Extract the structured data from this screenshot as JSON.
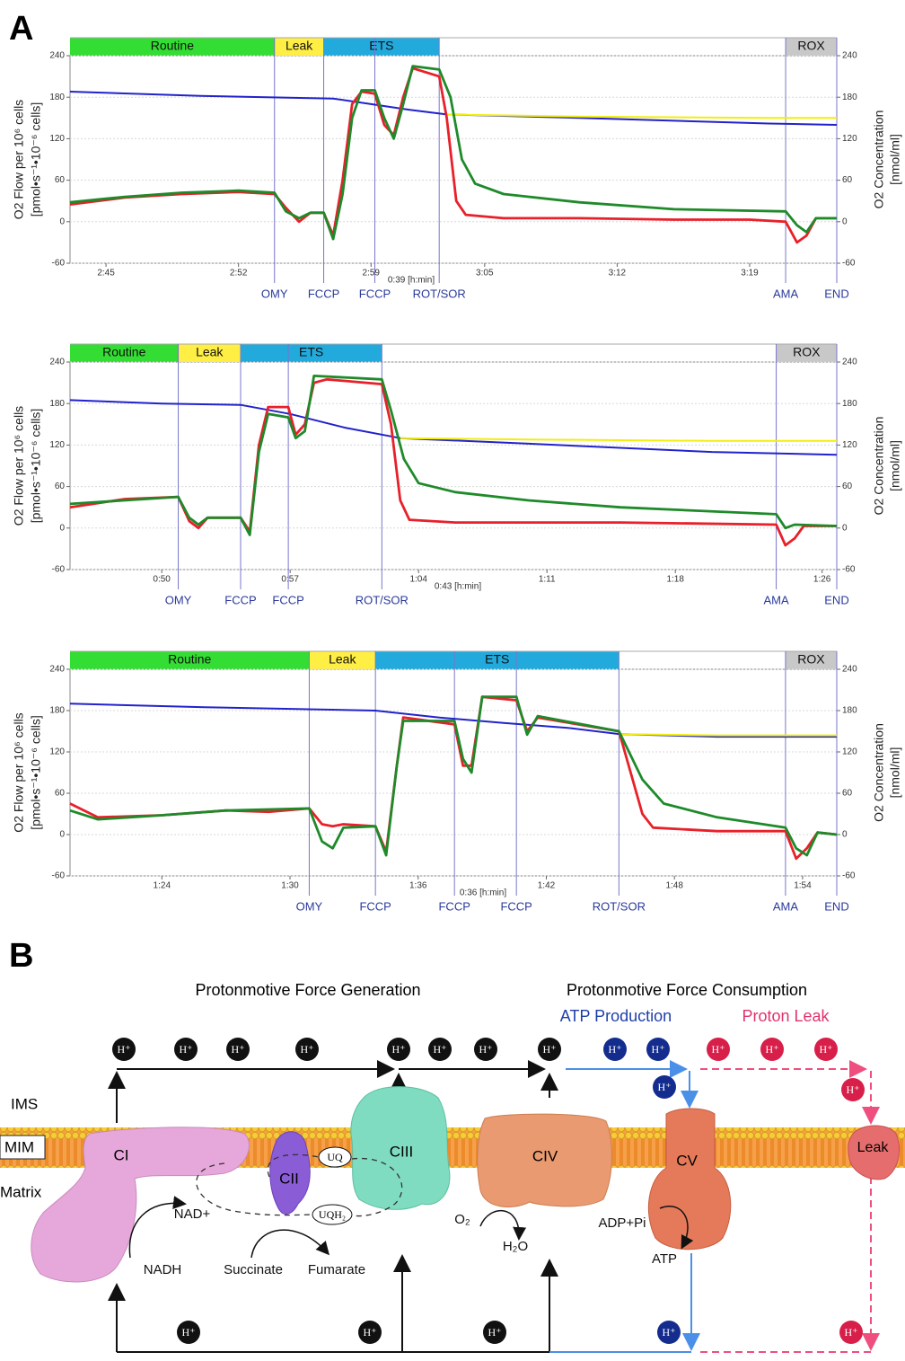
{
  "panel_a_label": "A",
  "chart_data": [
    {
      "type": "line",
      "xlim": [
        163.1,
        203.6
      ],
      "ylim": [
        -60,
        240
      ],
      "y2lim": [
        -60,
        240
      ],
      "xticks": [
        {
          "value": 165,
          "label": "2:45"
        },
        {
          "value": 172,
          "label": "2:52"
        },
        {
          "value": 179,
          "label": "2:59"
        },
        {
          "value": 185,
          "label": "3:05"
        },
        {
          "value": 192,
          "label": "3:12"
        },
        {
          "value": 199,
          "label": "3:19"
        }
      ],
      "yticks": [
        -60,
        0,
        60,
        120,
        180,
        240
      ],
      "y2ticks": [
        -60,
        0,
        60,
        120,
        180,
        240
      ],
      "grid": true,
      "ylabel": "O2 Flow per 10⁶ cells",
      "ylabel_unit": "[pmol•s⁻¹•10⁻⁶ cells]",
      "y2label": "O2 Concentration",
      "y2label_unit": "[nmol/ml]",
      "annotation": "0:39 [h:min]",
      "phases": [
        {
          "label": "Routine",
          "start": 163.1,
          "end": 173.9,
          "color": "#33dd33"
        },
        {
          "label": "Leak",
          "start": 173.9,
          "end": 176.5,
          "color": "#ffee44"
        },
        {
          "label": "ETS",
          "start": 176.5,
          "end": 182.6,
          "color": "#22aadd"
        },
        {
          "label": "ROX",
          "start": 200.9,
          "end": 203.6,
          "color": "#c8c8c8"
        }
      ],
      "events": [
        {
          "label": "OMY",
          "x": 173.9
        },
        {
          "label": "FCCP",
          "x": 176.5
        },
        {
          "label": "FCCP",
          "x": 179.2
        },
        {
          "label": "ROT/SOR",
          "x": 182.6
        },
        {
          "label": "AMA",
          "x": 200.9
        },
        {
          "label": "END",
          "x": 203.6
        }
      ],
      "series": [
        {
          "color": "#2222cc",
          "axis": "y2",
          "x": [
            163.1,
            170,
            177,
            179,
            181,
            183,
            190,
            200,
            203.6
          ],
          "values": [
            188,
            182,
            178,
            170,
            162,
            155,
            150,
            142,
            140
          ]
        },
        {
          "color": "#f2ee10",
          "axis": "y2",
          "x": [
            183,
            190,
            200,
            203.6
          ],
          "values": [
            155,
            152,
            150,
            150
          ]
        },
        {
          "color": "#e8202a",
          "x": [
            163.1,
            166,
            169,
            172,
            173.9,
            174.5,
            175.2,
            175.8,
            176.5,
            177,
            177.5,
            178,
            178.5,
            179.2,
            179.7,
            180.2,
            180.7,
            181.2,
            182.6,
            183,
            183.5,
            184,
            186,
            190,
            195,
            199,
            200.9,
            201.5,
            202,
            202.5,
            203.6
          ],
          "values": [
            25,
            35,
            40,
            43,
            40,
            20,
            0,
            13,
            13,
            -20,
            60,
            170,
            188,
            185,
            140,
            125,
            180,
            222,
            210,
            150,
            30,
            10,
            5,
            5,
            3,
            3,
            0,
            -30,
            -20,
            5,
            5
          ]
        },
        {
          "color": "#1e8a2a",
          "x": [
            163.1,
            166,
            169,
            172,
            173.9,
            174.5,
            175.2,
            175.8,
            176.5,
            177,
            177.5,
            178,
            178.5,
            179.2,
            179.7,
            180.2,
            180.7,
            181.2,
            182.6,
            183.2,
            183.8,
            184.5,
            186,
            190,
            195,
            200.9,
            201.5,
            202,
            202.5,
            203.6
          ],
          "values": [
            28,
            36,
            42,
            45,
            42,
            15,
            5,
            13,
            13,
            -25,
            40,
            150,
            190,
            190,
            150,
            120,
            170,
            225,
            220,
            180,
            90,
            55,
            40,
            28,
            18,
            15,
            -5,
            -15,
            5,
            5
          ]
        }
      ]
    },
    {
      "type": "line",
      "xlim": [
        45,
        86.8
      ],
      "ylim": [
        -60,
        240
      ],
      "y2lim": [
        -60,
        240
      ],
      "xticks": [
        {
          "value": 50,
          "label": "0:50"
        },
        {
          "value": 57,
          "label": "0:57"
        },
        {
          "value": 64,
          "label": "1:04"
        },
        {
          "value": 71,
          "label": "1:11"
        },
        {
          "value": 78,
          "label": "1:18"
        },
        {
          "value": 86,
          "label": "1:26"
        }
      ],
      "yticks": [
        -60,
        0,
        60,
        120,
        180,
        240
      ],
      "y2ticks": [
        -60,
        0,
        60,
        120,
        180,
        240
      ],
      "grid": true,
      "ylabel": "O2 Flow per 10⁶ cells",
      "ylabel_unit": "[pmol•s⁻¹•10⁻⁶ cells]",
      "y2label": "O2 Concentration",
      "y2label_unit": "[nmol/ml]",
      "annotation": "0:43 [h:min]",
      "phases": [
        {
          "label": "Routine",
          "start": 45,
          "end": 50.9,
          "color": "#33dd33"
        },
        {
          "label": "Leak",
          "start": 50.9,
          "end": 54.3,
          "color": "#ffee44"
        },
        {
          "label": "ETS",
          "start": 54.3,
          "end": 62.0,
          "color": "#22aadd"
        },
        {
          "label": "ROX",
          "start": 83.5,
          "end": 86.8,
          "color": "#c8c8c8"
        }
      ],
      "events": [
        {
          "label": "OMY",
          "x": 50.9
        },
        {
          "label": "FCCP",
          "x": 54.3
        },
        {
          "label": "FCCP",
          "x": 56.9
        },
        {
          "label": "ROT/SOR",
          "x": 62.0
        },
        {
          "label": "AMA",
          "x": 83.5
        },
        {
          "label": "END",
          "x": 86.8
        }
      ],
      "series": [
        {
          "color": "#2222cc",
          "axis": "y2",
          "x": [
            45,
            50,
            54.3,
            57,
            60,
            63,
            70,
            80,
            86.8
          ],
          "values": [
            185,
            180,
            178,
            165,
            145,
            130,
            122,
            110,
            106
          ]
        },
        {
          "color": "#f2ee10",
          "axis": "y2",
          "x": [
            63,
            70,
            80,
            86.8
          ],
          "values": [
            130,
            128,
            126,
            126
          ]
        },
        {
          "color": "#e8202a",
          "x": [
            45,
            48,
            50.9,
            51.5,
            52,
            52.5,
            54.3,
            54.8,
            55.3,
            55.8,
            56.9,
            57.3,
            57.8,
            58.3,
            59,
            62,
            62.5,
            63,
            63.5,
            66,
            75,
            83.5,
            84,
            84.5,
            85,
            86.8
          ],
          "values": [
            30,
            42,
            45,
            10,
            0,
            15,
            15,
            -5,
            120,
            175,
            175,
            135,
            150,
            210,
            215,
            208,
            150,
            40,
            12,
            8,
            8,
            5,
            -25,
            -15,
            3,
            3
          ]
        },
        {
          "color": "#1e8a2a",
          "x": [
            45,
            50.9,
            51.5,
            52,
            52.5,
            54.3,
            54.8,
            55.3,
            55.8,
            56.9,
            57.3,
            57.8,
            58.3,
            62,
            62.5,
            63.2,
            64,
            66,
            70,
            75,
            83.5,
            84,
            84.5,
            86.8
          ],
          "values": [
            35,
            45,
            15,
            5,
            15,
            15,
            -10,
            110,
            165,
            160,
            130,
            140,
            220,
            215,
            170,
            100,
            65,
            52,
            40,
            30,
            20,
            0,
            5,
            3
          ]
        }
      ]
    },
    {
      "type": "line",
      "xlim": [
        79.7,
        115.6
      ],
      "ylim": [
        -60,
        240
      ],
      "y2lim": [
        -60,
        240
      ],
      "xticks": [
        {
          "value": 84,
          "label": "1:24"
        },
        {
          "value": 90,
          "label": "1:30"
        },
        {
          "value": 96,
          "label": "1:36"
        },
        {
          "value": 102,
          "label": "1:42"
        },
        {
          "value": 108,
          "label": "1:48"
        },
        {
          "value": 114,
          "label": "1:54"
        }
      ],
      "yticks": [
        -60,
        0,
        60,
        120,
        180,
        240
      ],
      "y2ticks": [
        -60,
        0,
        60,
        120,
        180,
        240
      ],
      "grid": true,
      "ylabel": "O2 Flow per 10⁶ cells",
      "ylabel_unit": "[pmol•s⁻¹•10⁻⁶ cells]",
      "y2label": "O2 Concentration",
      "y2label_unit": "[nmol/ml]",
      "annotation": "0:36 [h:min]",
      "phases": [
        {
          "label": "Routine",
          "start": 79.7,
          "end": 90.9,
          "color": "#33dd33"
        },
        {
          "label": "Leak",
          "start": 90.9,
          "end": 94.0,
          "color": "#ffee44"
        },
        {
          "label": "ETS",
          "start": 94.0,
          "end": 105.4,
          "color": "#22aadd"
        },
        {
          "label": "ROX",
          "start": 113.2,
          "end": 115.6,
          "color": "#c8c8c8"
        }
      ],
      "events": [
        {
          "label": "OMY",
          "x": 90.9
        },
        {
          "label": "FCCP",
          "x": 94.0
        },
        {
          "label": "FCCP",
          "x": 97.7
        },
        {
          "label": "FCCP",
          "x": 100.6
        },
        {
          "label": "ROT/SOR",
          "x": 105.4
        },
        {
          "label": "AMA",
          "x": 113.2
        },
        {
          "label": "END",
          "x": 115.6
        }
      ],
      "series": [
        {
          "color": "#2222cc",
          "axis": "y2",
          "x": [
            79.7,
            86,
            94,
            97,
            100,
            103,
            105.4,
            110,
            115.6
          ],
          "values": [
            190,
            185,
            180,
            170,
            162,
            155,
            146,
            142,
            142
          ]
        },
        {
          "color": "#f2ee10",
          "axis": "y2",
          "x": [
            105.4,
            110,
            115.6
          ],
          "values": [
            146,
            144,
            144
          ]
        },
        {
          "color": "#e8202a",
          "x": [
            79.7,
            81,
            84,
            87,
            89,
            90.9,
            91.5,
            92,
            92.5,
            94,
            94.5,
            95,
            95.3,
            97.7,
            98.1,
            98.5,
            99,
            100.6,
            101.1,
            101.6,
            105.4,
            106.5,
            107,
            110,
            113.2,
            113.7,
            114.2,
            114.7,
            115.6
          ],
          "values": [
            45,
            25,
            28,
            35,
            33,
            38,
            15,
            12,
            15,
            12,
            -25,
            100,
            170,
            160,
            100,
            100,
            200,
            195,
            150,
            170,
            150,
            30,
            10,
            5,
            5,
            -35,
            -20,
            3,
            0
          ]
        },
        {
          "color": "#1e8a2a",
          "x": [
            79.7,
            81,
            84,
            87,
            90.9,
            91.5,
            92,
            92.5,
            94,
            94.5,
            95,
            95.3,
            97.7,
            98.1,
            98.5,
            99,
            100.6,
            101.1,
            101.6,
            105.4,
            106.5,
            107.5,
            110,
            113.2,
            113.7,
            114.2,
            114.7,
            115.6
          ],
          "values": [
            35,
            22,
            28,
            35,
            38,
            -10,
            -20,
            10,
            12,
            -30,
            100,
            165,
            165,
            110,
            90,
            200,
            200,
            145,
            172,
            150,
            80,
            45,
            25,
            10,
            -20,
            -30,
            3,
            0
          ]
        }
      ]
    }
  ],
  "diagram": {
    "panel_label": "B",
    "generation_title": "Protonmotive Force Generation",
    "consumption_title": "Protonmotive Force Consumption",
    "atp_production": "ATP Production",
    "proton_leak": "Proton Leak",
    "compartments": [
      "IMS",
      "MIM",
      "Matrix"
    ],
    "complexes": [
      "CI",
      "CII",
      "CIII",
      "CIV",
      "CV",
      "Leak"
    ],
    "uq": "UQ",
    "uqh2": "UQH₂",
    "nad": "NAD+",
    "nadh": "NADH",
    "succinate": "Succinate",
    "fumarate": "Fumarate",
    "o2": "O₂",
    "h2o": "H₂O",
    "adp": "ADP+Pi",
    "atp": "ATP",
    "protons": [
      "H⁺",
      "H⁺",
      "H⁺",
      "H⁺",
      "H⁺",
      "H⁺",
      "H⁺",
      "H⁺",
      "H⁺",
      "H⁺",
      "H⁺",
      "H⁺",
      "H⁺",
      "H⁺",
      "H⁺",
      "H⁺",
      "H⁺",
      "H⁺",
      "H⁺",
      "H⁺"
    ]
  }
}
